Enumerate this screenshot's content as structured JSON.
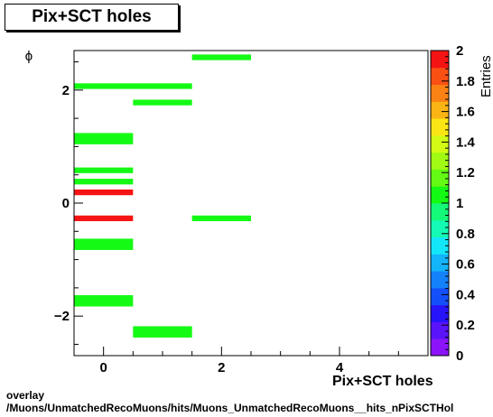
{
  "chart_data": {
    "type": "heatmap",
    "title": "Pix+SCT holes",
    "xlabel": "Pix+SCT holes",
    "ylabel": "ϕ",
    "zlabel": "Entries",
    "xlim": [
      -0.5,
      5.5
    ],
    "ylim": [
      -2.7,
      2.7
    ],
    "zlim": [
      0,
      2
    ],
    "x_ticks": [
      0,
      2,
      4
    ],
    "y_ticks": [
      -2,
      0,
      2
    ],
    "z_ticks": [
      0,
      0.2,
      0.4,
      0.6,
      0.8,
      1,
      1.2,
      1.4,
      1.6,
      1.8,
      2
    ],
    "grid": false,
    "cells": [
      {
        "x": [
          1.5,
          2.5
        ],
        "y": [
          2.53,
          2.63
        ],
        "z": 1
      },
      {
        "x": [
          -0.5,
          1.5
        ],
        "y": [
          2.02,
          2.12
        ],
        "z": 1
      },
      {
        "x": [
          0.5,
          1.5
        ],
        "y": [
          1.73,
          1.83
        ],
        "z": 1
      },
      {
        "x": [
          -0.5,
          0.5
        ],
        "y": [
          1.04,
          1.24
        ],
        "z": 1
      },
      {
        "x": [
          -0.5,
          0.5
        ],
        "y": [
          0.53,
          0.63
        ],
        "z": 1
      },
      {
        "x": [
          -0.5,
          0.5
        ],
        "y": [
          0.33,
          0.43
        ],
        "z": 1
      },
      {
        "x": [
          -0.5,
          0.5
        ],
        "y": [
          0.14,
          0.24
        ],
        "z": 2
      },
      {
        "x": [
          -0.5,
          0.5
        ],
        "y": [
          -0.32,
          -0.22
        ],
        "z": 2
      },
      {
        "x": [
          1.5,
          2.5
        ],
        "y": [
          -0.32,
          -0.22
        ],
        "z": 1
      },
      {
        "x": [
          -0.5,
          0.5
        ],
        "y": [
          -0.83,
          -0.63
        ],
        "z": 1
      },
      {
        "x": [
          -0.5,
          0.5
        ],
        "y": [
          -1.83,
          -1.63
        ],
        "z": 1
      },
      {
        "x": [
          0.5,
          1.5
        ],
        "y": [
          -2.38,
          -2.18
        ],
        "z": 1
      }
    ]
  },
  "colors": {
    "z1": "#14fa14",
    "z2": "#f51414",
    "palette": [
      "#8c14fa",
      "#5a14fa",
      "#2814fa",
      "#1450fa",
      "#1482fa",
      "#14b4fa",
      "#14e6fa",
      "#14fab4",
      "#14fa78",
      "#14fa14",
      "#64fa14",
      "#a0fa14",
      "#d2fa14",
      "#fae614",
      "#fab414",
      "#fa8214",
      "#fa5014",
      "#f51414"
    ]
  },
  "footer": {
    "line1": "overlay",
    "line2": "/Muons/UnmatchedRecoMuons/hits/Muons_UnmatchedRecoMuons__hits_nPixSCTHol"
  }
}
